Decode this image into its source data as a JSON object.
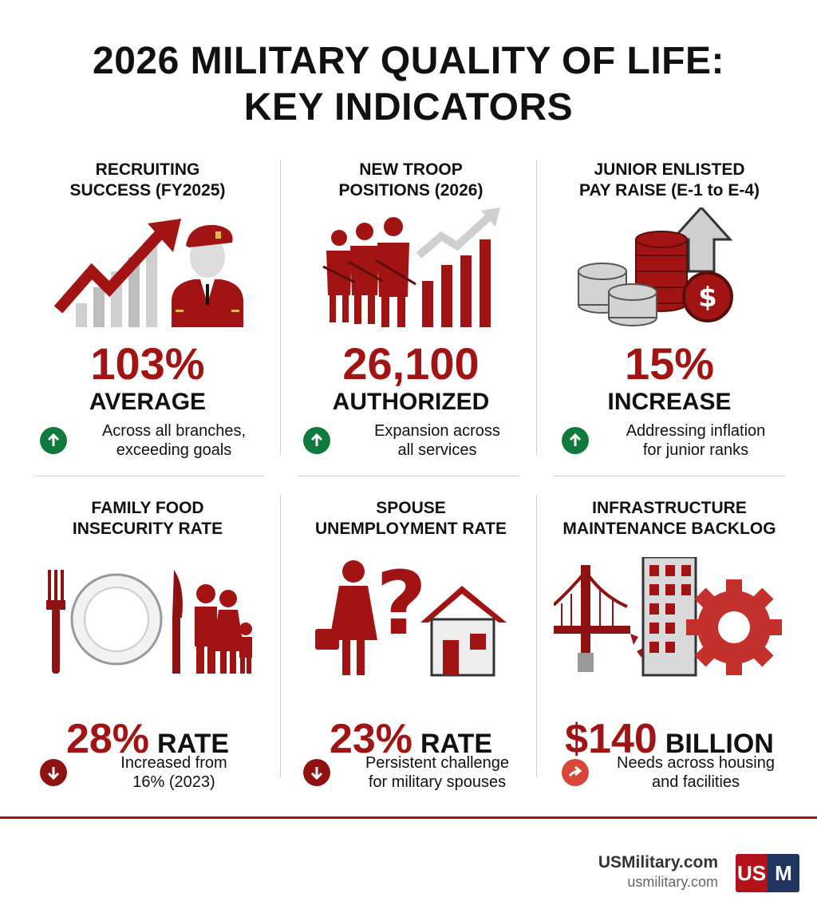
{
  "title": {
    "line1": "2026 MILITARY QUALITY OF LIFE:",
    "line2": "KEY INDICATORS"
  },
  "colors": {
    "accent": "#a21414",
    "green": "#0f7a3c",
    "dark_red": "#8e1212",
    "orange_red": "#d9463a",
    "navy": "#1f3560"
  },
  "cells": [
    {
      "title1": "RECRUITING",
      "title2": "SUCCESS (FY2025)",
      "value": "103%",
      "label": "AVERAGE",
      "note1": "Across all branches,",
      "note2": "exceeding goals",
      "icon": "rising-chart-soldier-icon",
      "badge": "up-arrow-icon"
    },
    {
      "title1": "NEW TROOP",
      "title2": "POSITIONS (2026)",
      "value": "26,100",
      "label": "AUTHORIZED",
      "note1": "Expansion across",
      "note2": "all services",
      "icon": "troops-growth-chart-icon",
      "badge": "up-arrow-icon"
    },
    {
      "title1": "JUNIOR ENLISTED",
      "title2": "PAY RAISE (E-1 to E-4)",
      "value": "15%",
      "label": "INCREASE",
      "note1": "Addressing inflation",
      "note2": "for junior ranks",
      "icon": "coins-dollar-icon",
      "badge": "up-arrow-icon"
    },
    {
      "title1": "FAMILY FOOD",
      "title2": "INSECURITY RATE",
      "value": "28%",
      "label": "RATE",
      "note1": "Increased from",
      "note2": "16% (2023)",
      "icon": "plate-family-icon",
      "badge": "down-arrow-icon"
    },
    {
      "title1": "SPOUSE",
      "title2": "UNEMPLOYMENT RATE",
      "value": "23%",
      "label": "RATE",
      "note1": "Persistent challenge",
      "note2": "for military spouses",
      "icon": "spouse-question-house-icon",
      "badge": "down-arrow-icon"
    },
    {
      "title1": "INFRASTRUCTURE",
      "title2": "MAINTENANCE BACKLOG",
      "value": "$140",
      "label": "BILLION",
      "note1": "Needs across housing",
      "note2": "and facilities",
      "icon": "bridge-building-gear-icon",
      "badge": "right-arrow-icon"
    }
  ],
  "footer": {
    "brand": "USMilitary.com",
    "url": "usmilitary.com",
    "logo_left": "US",
    "logo_right": "M"
  }
}
